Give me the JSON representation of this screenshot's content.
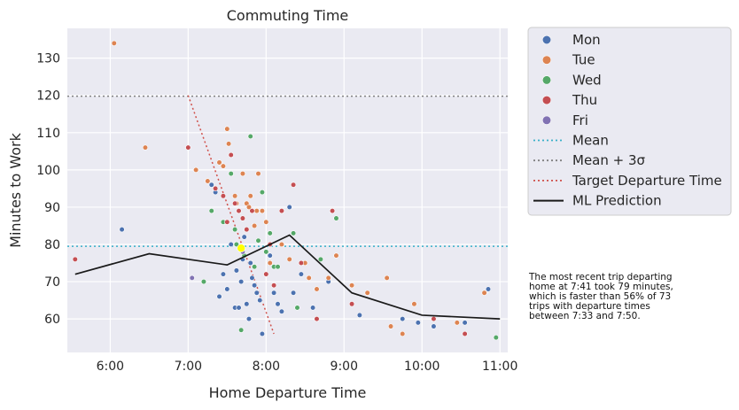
{
  "chart_data": {
    "type": "scatter",
    "title": "Commuting Time",
    "xlabel": "Home Departure Time",
    "ylabel": "Minutes to Work",
    "xlim": [
      5.45,
      11.1
    ],
    "ylim": [
      51,
      138
    ],
    "xticks": [
      {
        "value": 6,
        "label": "6:00"
      },
      {
        "value": 7,
        "label": "7:00"
      },
      {
        "value": 8,
        "label": "8:00"
      },
      {
        "value": 9,
        "label": "9:00"
      },
      {
        "value": 10,
        "label": "10:00"
      },
      {
        "value": 11,
        "label": "11:00"
      }
    ],
    "yticks": [
      60,
      70,
      80,
      90,
      100,
      110,
      120,
      130
    ],
    "grid": true,
    "legend_position": "outside-right",
    "series": [
      {
        "name": "Mon",
        "color": "#4c72b0",
        "points": [
          [
            6.15,
            84
          ],
          [
            7.3,
            96
          ],
          [
            7.35,
            94
          ],
          [
            7.4,
            66
          ],
          [
            7.45,
            72
          ],
          [
            7.5,
            68
          ],
          [
            7.55,
            80
          ],
          [
            7.6,
            63
          ],
          [
            7.62,
            73
          ],
          [
            7.65,
            63
          ],
          [
            7.68,
            70
          ],
          [
            7.7,
            76
          ],
          [
            7.72,
            82
          ],
          [
            7.75,
            64
          ],
          [
            7.78,
            60
          ],
          [
            7.8,
            75
          ],
          [
            7.82,
            71
          ],
          [
            7.85,
            69
          ],
          [
            7.88,
            67
          ],
          [
            7.92,
            65
          ],
          [
            7.95,
            56
          ],
          [
            8.05,
            77
          ],
          [
            8.1,
            67
          ],
          [
            8.15,
            64
          ],
          [
            8.2,
            62
          ],
          [
            8.3,
            90
          ],
          [
            8.35,
            67
          ],
          [
            8.45,
            72
          ],
          [
            8.6,
            63
          ],
          [
            8.8,
            70
          ],
          [
            9.2,
            61
          ],
          [
            9.75,
            60
          ],
          [
            9.95,
            59
          ],
          [
            10.15,
            58
          ],
          [
            10.55,
            59
          ],
          [
            10.85,
            68
          ]
        ]
      },
      {
        "name": "Tue",
        "color": "#dd8452",
        "points": [
          [
            6.05,
            134
          ],
          [
            6.45,
            106
          ],
          [
            7.1,
            100
          ],
          [
            7.25,
            97
          ],
          [
            7.4,
            102
          ],
          [
            7.45,
            101
          ],
          [
            7.5,
            111
          ],
          [
            7.52,
            107
          ],
          [
            7.55,
            99
          ],
          [
            7.6,
            93
          ],
          [
            7.62,
            91
          ],
          [
            7.65,
            89
          ],
          [
            7.7,
            99
          ],
          [
            7.75,
            91
          ],
          [
            7.78,
            90
          ],
          [
            7.8,
            93
          ],
          [
            7.85,
            85
          ],
          [
            7.88,
            89
          ],
          [
            7.9,
            99
          ],
          [
            7.95,
            89
          ],
          [
            8.0,
            86
          ],
          [
            8.05,
            75
          ],
          [
            8.1,
            69
          ],
          [
            8.2,
            80
          ],
          [
            8.3,
            76
          ],
          [
            8.5,
            75
          ],
          [
            8.55,
            71
          ],
          [
            8.65,
            68
          ],
          [
            8.8,
            71
          ],
          [
            8.85,
            89
          ],
          [
            8.9,
            77
          ],
          [
            9.1,
            69
          ],
          [
            9.3,
            67
          ],
          [
            9.55,
            71
          ],
          [
            9.6,
            58
          ],
          [
            9.75,
            56
          ],
          [
            9.9,
            64
          ],
          [
            10.45,
            59
          ],
          [
            10.8,
            67
          ]
        ]
      },
      {
        "name": "Wed",
        "color": "#55a868",
        "points": [
          [
            7.2,
            70
          ],
          [
            7.3,
            89
          ],
          [
            7.45,
            86
          ],
          [
            7.55,
            99
          ],
          [
            7.6,
            84
          ],
          [
            7.62,
            80
          ],
          [
            7.68,
            57
          ],
          [
            7.72,
            77
          ],
          [
            7.8,
            109
          ],
          [
            7.85,
            74
          ],
          [
            7.9,
            81
          ],
          [
            7.95,
            94
          ],
          [
            8.0,
            78
          ],
          [
            8.05,
            83
          ],
          [
            8.1,
            74
          ],
          [
            8.15,
            74
          ],
          [
            8.35,
            83
          ],
          [
            8.4,
            63
          ],
          [
            8.7,
            76
          ],
          [
            8.9,
            87
          ],
          [
            10.95,
            55
          ]
        ]
      },
      {
        "name": "Thu",
        "color": "#c44e52",
        "points": [
          [
            5.55,
            76
          ],
          [
            7.0,
            106
          ],
          [
            7.35,
            95
          ],
          [
            7.45,
            93
          ],
          [
            7.5,
            86
          ],
          [
            7.55,
            104
          ],
          [
            7.6,
            91
          ],
          [
            7.65,
            89
          ],
          [
            7.7,
            87
          ],
          [
            7.75,
            84
          ],
          [
            7.82,
            89
          ],
          [
            8.0,
            72
          ],
          [
            8.05,
            80
          ],
          [
            8.1,
            69
          ],
          [
            8.2,
            89
          ],
          [
            8.35,
            96
          ],
          [
            8.45,
            75
          ],
          [
            8.65,
            60
          ],
          [
            8.85,
            89
          ],
          [
            9.1,
            64
          ],
          [
            10.15,
            60
          ],
          [
            10.55,
            56
          ]
        ]
      },
      {
        "name": "Fri",
        "color": "#8172b3",
        "points": [
          [
            7.05,
            71
          ],
          [
            7.7,
            78
          ]
        ]
      }
    ],
    "lines": [
      {
        "name": "Mean",
        "color": "#39b0c9",
        "style": "dotted",
        "y": 79.5
      },
      {
        "name": "Mean + 3σ",
        "color": "#808080",
        "style": "dotted",
        "y": 119.8
      },
      {
        "name": "Target Departure Time",
        "color": "#d0504a",
        "style": "dotted",
        "points": [
          [
            7.0,
            120
          ],
          [
            8.1,
            56
          ]
        ]
      },
      {
        "name": "ML Prediction",
        "color": "#1a1a1a",
        "style": "solid",
        "points": [
          [
            5.55,
            72
          ],
          [
            6.5,
            77.5
          ],
          [
            7.5,
            74.5
          ],
          [
            8.3,
            82.5
          ],
          [
            9.1,
            67
          ],
          [
            10.0,
            61
          ],
          [
            11.0,
            60
          ]
        ]
      }
    ],
    "highlight": {
      "x": 7.68,
      "y": 79,
      "color": "#ffff00"
    },
    "annotation": "The most recent trip departing\nhome at 7:41 took 79 minutes,\nwhich is faster than 56% of 73\ntrips with departure times\nbetween 7:33 and 7:50."
  }
}
